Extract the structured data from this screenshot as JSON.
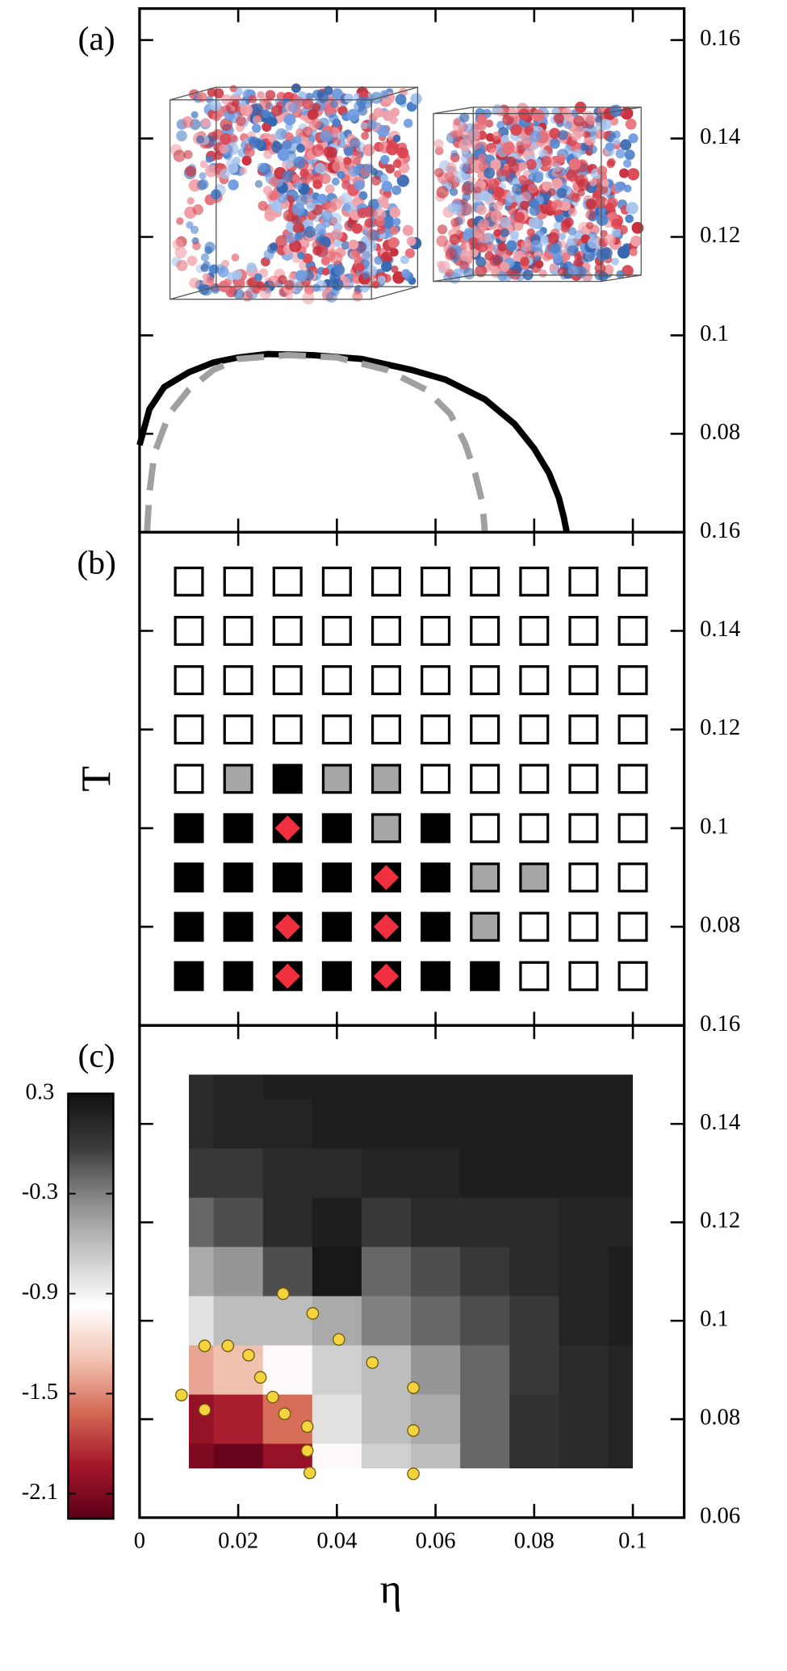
{
  "chart_data": [
    {
      "type": "line",
      "label": "(a)",
      "xlim": [
        0,
        0.1104
      ],
      "ylim": [
        0.06,
        0.1664
      ],
      "yticks": [
        0.08,
        0.1,
        0.12,
        0.14,
        0.16
      ],
      "series": [
        {
          "color": "#000000",
          "dash": false,
          "x": [
            0,
            0.002,
            0.005,
            0.01,
            0.015,
            0.02,
            0.026,
            0.035,
            0.045,
            0.055,
            0.062,
            0.07,
            0.076,
            0.08,
            0.083,
            0.085,
            0.086,
            0.0866
          ],
          "y": [
            0.0777,
            0.085,
            0.0895,
            0.0925,
            0.0945,
            0.0955,
            0.0962,
            0.096,
            0.0952,
            0.093,
            0.091,
            0.087,
            0.082,
            0.077,
            0.072,
            0.067,
            0.063,
            0.06
          ]
        },
        {
          "color": "#a0a0a0",
          "dash": true,
          "x": [
            0.0015,
            0.002,
            0.003,
            0.006,
            0.01,
            0.015,
            0.02,
            0.03,
            0.04,
            0.05,
            0.058,
            0.063,
            0.066,
            0.068,
            0.0695,
            0.07
          ],
          "y": [
            0.06,
            0.068,
            0.076,
            0.084,
            0.089,
            0.093,
            0.0952,
            0.096,
            0.0955,
            0.093,
            0.089,
            0.084,
            0.078,
            0.072,
            0.066,
            0.06
          ]
        }
      ]
    },
    {
      "type": "scatter",
      "label": "(b)",
      "ylabel": "T",
      "xlim": [
        0,
        0.1104
      ],
      "ylim": [
        0.06,
        0.16
      ],
      "yticks": [
        0.08,
        0.1,
        0.12,
        0.14,
        0.16
      ],
      "series": [
        {
          "color": "#ffffff",
          "marker": "square",
          "x": [
            0.01,
            0.02,
            0.03,
            0.04,
            0.05,
            0.06,
            0.07,
            0.08,
            0.09,
            0.1,
            0.01,
            0.02,
            0.03,
            0.04,
            0.05,
            0.06,
            0.07,
            0.08,
            0.09,
            0.1,
            0.01,
            0.02,
            0.03,
            0.04,
            0.05,
            0.06,
            0.07,
            0.08,
            0.09,
            0.1,
            0.01,
            0.02,
            0.03,
            0.04,
            0.05,
            0.06,
            0.07,
            0.08,
            0.09,
            0.1,
            0.01,
            0.06,
            0.07,
            0.08,
            0.09,
            0.1,
            0.07,
            0.08,
            0.09,
            0.1,
            0.09,
            0.1,
            0.08,
            0.09,
            0.1,
            0.08,
            0.09,
            0.1
          ],
          "y": [
            0.15,
            0.15,
            0.15,
            0.15,
            0.15,
            0.15,
            0.15,
            0.15,
            0.15,
            0.15,
            0.14,
            0.14,
            0.14,
            0.14,
            0.14,
            0.14,
            0.14,
            0.14,
            0.14,
            0.14,
            0.13,
            0.13,
            0.13,
            0.13,
            0.13,
            0.13,
            0.13,
            0.13,
            0.13,
            0.13,
            0.12,
            0.12,
            0.12,
            0.12,
            0.12,
            0.12,
            0.12,
            0.12,
            0.12,
            0.12,
            0.11,
            0.11,
            0.11,
            0.11,
            0.11,
            0.11,
            0.1,
            0.1,
            0.1,
            0.1,
            0.09,
            0.09,
            0.08,
            0.08,
            0.08,
            0.07,
            0.07,
            0.07
          ]
        },
        {
          "color": "#a6a6a6",
          "marker": "square",
          "x": [
            0.02,
            0.04,
            0.05,
            0.05,
            0.07,
            0.08,
            0.07
          ],
          "y": [
            0.11,
            0.11,
            0.11,
            0.1,
            0.09,
            0.09,
            0.08
          ]
        },
        {
          "color": "#000000",
          "marker": "square",
          "x": [
            0.03,
            0.01,
            0.02,
            0.03,
            0.04,
            0.06,
            0.01,
            0.02,
            0.03,
            0.04,
            0.05,
            0.06,
            0.01,
            0.02,
            0.03,
            0.04,
            0.05,
            0.06,
            0.01,
            0.02,
            0.03,
            0.04,
            0.05,
            0.06,
            0.07
          ],
          "y": [
            0.11,
            0.1,
            0.1,
            0.1,
            0.1,
            0.1,
            0.09,
            0.09,
            0.09,
            0.09,
            0.09,
            0.09,
            0.08,
            0.08,
            0.08,
            0.08,
            0.08,
            0.08,
            0.07,
            0.07,
            0.07,
            0.07,
            0.07,
            0.07,
            0.07
          ]
        },
        {
          "color": "#f0303f",
          "marker": "diamond",
          "x": [
            0.03,
            0.05,
            0.03,
            0.05,
            0.03,
            0.05
          ],
          "y": [
            0.1,
            0.09,
            0.08,
            0.08,
            0.07,
            0.07
          ]
        }
      ]
    },
    {
      "type": "heatmap",
      "label": "(c)",
      "xlabel": "η",
      "xlim": [
        0,
        0.1104
      ],
      "ylim": [
        0.06,
        0.16
      ],
      "xticks": [
        0,
        0.02,
        0.04,
        0.06,
        0.08,
        0.1
      ],
      "yticks": [
        0.06,
        0.08,
        0.1,
        0.12,
        0.14,
        0.16
      ],
      "x": [
        0.01,
        0.02,
        0.03,
        0.04,
        0.05,
        0.06,
        0.07,
        0.08,
        0.09,
        0.1
      ],
      "y": [
        0.15,
        0.14,
        0.13,
        0.12,
        0.11,
        0.1,
        0.09,
        0.08,
        0.07
      ],
      "z": [
        [
          0.1,
          0.15,
          0.2,
          0.2,
          0.2,
          0.2,
          0.2,
          0.2,
          0.2,
          0.2
        ],
        [
          0.1,
          0.15,
          0.15,
          0.2,
          0.2,
          0.2,
          0.2,
          0.2,
          0.2,
          0.2
        ],
        [
          0.0,
          0.0,
          0.1,
          0.1,
          0.15,
          0.15,
          0.2,
          0.2,
          0.2,
          0.2
        ],
        [
          -0.2,
          -0.1,
          0.1,
          0.2,
          0.0,
          0.1,
          0.1,
          0.1,
          0.15,
          0.15
        ],
        [
          -0.5,
          -0.4,
          -0.1,
          0.25,
          -0.2,
          -0.1,
          0.0,
          0.1,
          0.15,
          0.2
        ],
        [
          -0.8,
          -0.6,
          -0.6,
          -0.5,
          -0.3,
          -0.2,
          -0.1,
          0.0,
          0.15,
          0.2
        ],
        [
          -1.4,
          -1.3,
          -1.0,
          -0.7,
          -0.6,
          -0.4,
          -0.2,
          0.0,
          0.1,
          0.15
        ],
        [
          -2.0,
          -1.9,
          -1.6,
          -0.8,
          -0.6,
          -0.5,
          -0.2,
          0.05,
          0.1,
          0.15
        ],
        [
          -2.1,
          -2.2,
          -2.0,
          -1.0,
          -0.7,
          -0.6,
          -0.2,
          0.05,
          0.1,
          0.15
        ]
      ],
      "clim": [
        -2.25,
        0.3
      ],
      "cticks": [
        0.3,
        -0.3,
        -0.9,
        -1.5,
        -2.1
      ],
      "colormap": [
        "#5c0018",
        "#a3162a",
        "#d46a55",
        "#f2c3b2",
        "#ffffff",
        "#c8c8c8",
        "#8a8a8a",
        "#3a3a3a",
        "#111111"
      ],
      "series": [
        {
          "color": "#f5d33f",
          "x": [
            0.0085,
            0.0132,
            0.0132,
            0.0179,
            0.0221,
            0.0245,
            0.027,
            0.0294,
            0.034,
            0.034,
            0.0345,
            0.0291,
            0.0351,
            0.0404,
            0.0472,
            0.0555,
            0.0555,
            0.0555
          ],
          "y": [
            0.0849,
            0.0819,
            0.0949,
            0.0949,
            0.093,
            0.0885,
            0.0845,
            0.0811,
            0.0785,
            0.0736,
            0.0691,
            0.1055,
            0.1015,
            0.0962,
            0.0915,
            0.0864,
            0.0777,
            0.0689
          ]
        }
      ]
    }
  ]
}
